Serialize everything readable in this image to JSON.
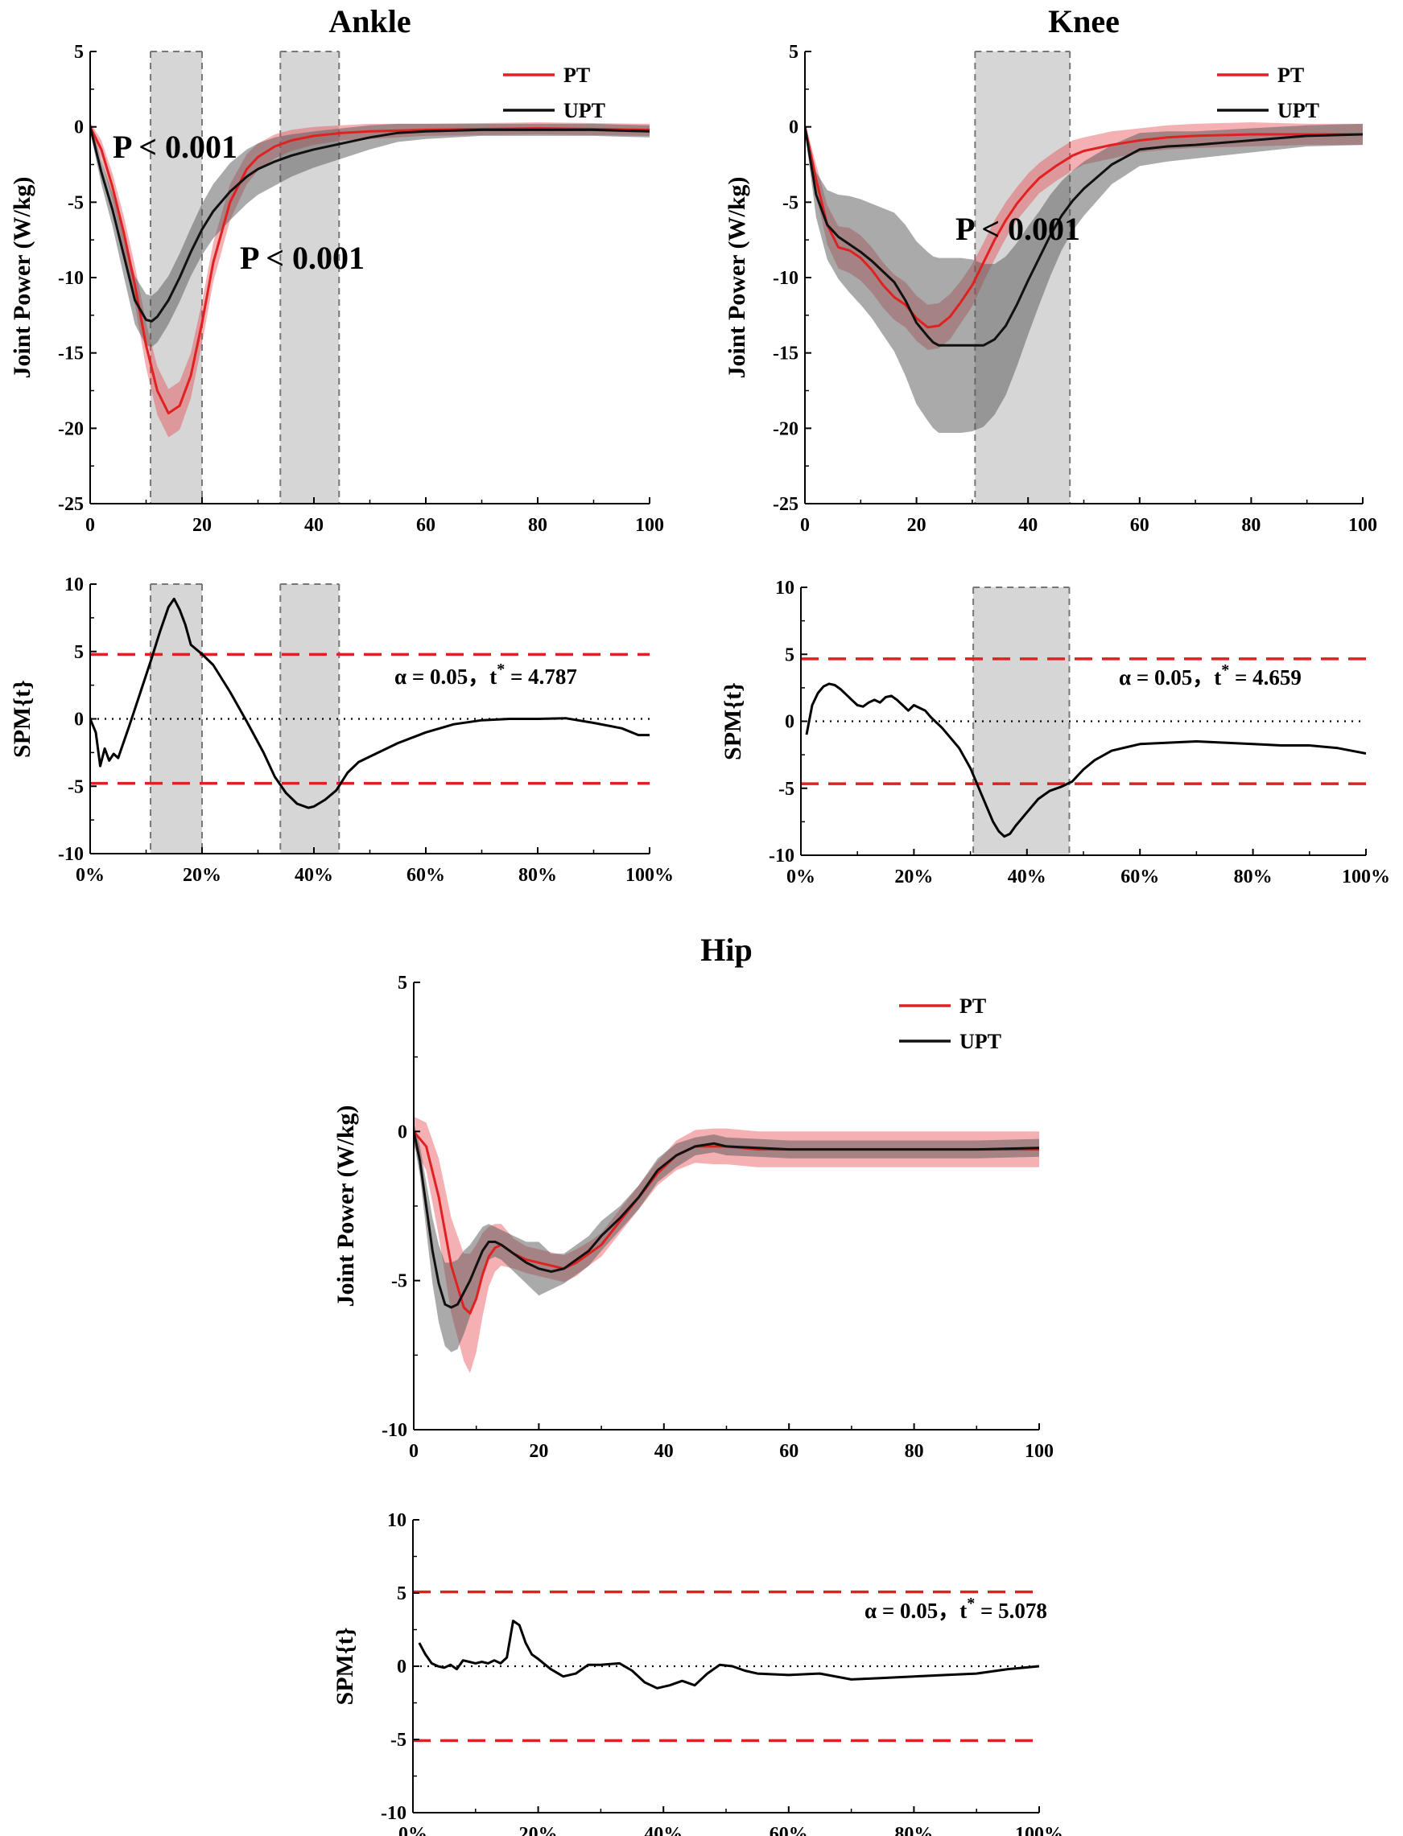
{
  "colors": {
    "pt": "#e02121",
    "upt": "#111111",
    "pt_band": "#e8424a",
    "upt_band": "#555555",
    "region": "#d6d6d6",
    "threshold": "#e02121"
  },
  "legend": {
    "pt": "PT",
    "upt": "UPT"
  },
  "chart_data": [
    {
      "id": "ankle_power",
      "type": "line",
      "title": "Ankle",
      "xlabel": "",
      "ylabel": "Joint Power (W/kg)",
      "xlim": [
        0,
        100
      ],
      "ylim": [
        -25,
        5
      ],
      "xticks": [
        "0",
        "20",
        "40",
        "60",
        "80",
        "100"
      ],
      "yticks": [
        "-25",
        "-20",
        "-15",
        "-10",
        "-5",
        "0",
        "5"
      ],
      "regions": [
        [
          10.8,
          20
        ],
        [
          34,
          44.5
        ]
      ],
      "annotations": [
        "P < 0.001",
        "P < 0.001"
      ],
      "series": [
        {
          "name": "PT",
          "x": [
            0,
            2,
            4,
            6,
            8,
            10,
            12,
            14,
            16,
            18,
            20,
            22,
            25,
            28,
            30,
            33,
            36,
            40,
            45,
            50,
            60,
            70,
            80,
            90,
            100
          ],
          "y": [
            0,
            -1.5,
            -4,
            -7,
            -10.5,
            -14.5,
            -17.5,
            -19,
            -18.5,
            -16.5,
            -13,
            -9,
            -5,
            -2.8,
            -2,
            -1.3,
            -0.9,
            -0.6,
            -0.4,
            -0.3,
            -0.2,
            -0.15,
            -0.1,
            -0.15,
            -0.2
          ],
          "sd": [
            0.3,
            0.6,
            0.9,
            1.1,
            1.3,
            1.5,
            1.6,
            1.6,
            1.6,
            1.5,
            1.4,
            1.3,
            1.2,
            1,
            0.9,
            0.8,
            0.7,
            0.6,
            0.5,
            0.5,
            0.4,
            0.4,
            0.4,
            0.4,
            0.4
          ]
        },
        {
          "name": "UPT",
          "x": [
            0,
            2,
            4,
            6,
            8,
            10,
            11,
            12,
            14,
            16,
            18,
            20,
            22,
            25,
            28,
            30,
            33,
            36,
            40,
            45,
            50,
            55,
            60,
            70,
            80,
            90,
            100
          ],
          "y": [
            0,
            -3,
            -5.5,
            -8.5,
            -11.5,
            -12.8,
            -12.9,
            -12.6,
            -11.5,
            -10,
            -8.3,
            -6.8,
            -5.6,
            -4.3,
            -3.3,
            -2.8,
            -2.3,
            -1.9,
            -1.5,
            -1.1,
            -0.7,
            -0.4,
            -0.3,
            -0.2,
            -0.2,
            -0.2,
            -0.3
          ],
          "sd": [
            0.3,
            0.8,
            1.1,
            1.4,
            1.6,
            1.7,
            1.7,
            1.7,
            1.6,
            1.6,
            1.6,
            1.7,
            1.8,
            1.9,
            1.8,
            1.7,
            1.6,
            1.4,
            1.2,
            1,
            0.8,
            0.6,
            0.5,
            0.4,
            0.4,
            0.4,
            0.4
          ]
        }
      ]
    },
    {
      "id": "ankle_spm",
      "type": "line",
      "title": "",
      "xlabel": "",
      "ylabel": "SPM{t}",
      "xlim": [
        0,
        100
      ],
      "ylim": [
        -10,
        10
      ],
      "xticks": [
        "0%",
        "20%",
        "40%",
        "60%",
        "80%",
        "100%"
      ],
      "yticks": [
        "-10",
        "-5",
        "0",
        "5",
        "10"
      ],
      "regions": [
        [
          10.8,
          20
        ],
        [
          34,
          44.5
        ]
      ],
      "threshold": 4.787,
      "threshold_label": {
        "prefix": "α = 0.05，t",
        "sup": "*",
        "suffix": " = 4.787"
      },
      "series": [
        {
          "name": "SPM{t}",
          "x": [
            0,
            1,
            1.8,
            2.6,
            3.4,
            4.2,
            5,
            7,
            9,
            11,
            12.5,
            14,
            15,
            16,
            17,
            18,
            20,
            22,
            25,
            28,
            31,
            33,
            35,
            37,
            39,
            40,
            42,
            44,
            46,
            48,
            50,
            55,
            60,
            65,
            70,
            75,
            80,
            85,
            90,
            95,
            98,
            100
          ],
          "y": [
            0,
            -1,
            -3.5,
            -2.2,
            -3.1,
            -2.6,
            -2.9,
            -0.5,
            2,
            4.5,
            6.5,
            8.3,
            8.9,
            8.1,
            7,
            5.5,
            4.8,
            4,
            2,
            -0.2,
            -2.5,
            -4.3,
            -5.5,
            -6.3,
            -6.6,
            -6.5,
            -6,
            -5.3,
            -4,
            -3.2,
            -2.8,
            -1.8,
            -1,
            -0.4,
            -0.1,
            0,
            0,
            0.05,
            -0.3,
            -0.7,
            -1.2,
            -1.2
          ]
        }
      ]
    },
    {
      "id": "knee_power",
      "type": "line",
      "title": "Knee",
      "xlabel": "",
      "ylabel": "Joint Power (W/kg)",
      "xlim": [
        0,
        100
      ],
      "ylim": [
        -25,
        5
      ],
      "xticks": [
        "0",
        "20",
        "40",
        "60",
        "80",
        "100"
      ],
      "yticks": [
        "-25",
        "-20",
        "-15",
        "-10",
        "-5",
        "0",
        "5"
      ],
      "regions": [
        [
          30.5,
          47.5
        ]
      ],
      "annotations": [
        "P < 0.001"
      ],
      "series": [
        {
          "name": "PT",
          "x": [
            0,
            2,
            4,
            6,
            8,
            10,
            12,
            14,
            16,
            18,
            20,
            22,
            24,
            26,
            28,
            30,
            32,
            34,
            36,
            38,
            40,
            42,
            45,
            48,
            50,
            55,
            60,
            65,
            70,
            80,
            90,
            100
          ],
          "y": [
            0,
            -3.5,
            -6.5,
            -8,
            -8.2,
            -8.7,
            -9.5,
            -10.5,
            -11.3,
            -11.8,
            -12.7,
            -13.3,
            -13.2,
            -12.6,
            -11.6,
            -10.5,
            -9,
            -7.5,
            -6.2,
            -5.1,
            -4.2,
            -3.4,
            -2.6,
            -1.9,
            -1.6,
            -1.2,
            -0.9,
            -0.7,
            -0.6,
            -0.5,
            -0.5,
            -0.5
          ],
          "sd": [
            0.3,
            1,
            1.3,
            1.4,
            1.5,
            1.5,
            1.5,
            1.5,
            1.5,
            1.5,
            1.5,
            1.5,
            1.5,
            1.5,
            1.4,
            1.4,
            1.3,
            1.3,
            1.2,
            1.1,
            1.1,
            1,
            1,
            1,
            0.9,
            0.9,
            0.8,
            0.8,
            0.8,
            0.8,
            0.7,
            0.7
          ]
        },
        {
          "name": "UPT",
          "x": [
            0,
            2,
            4,
            6,
            8,
            10,
            12,
            14,
            16,
            18,
            20,
            22,
            23,
            24,
            26,
            28,
            30,
            32,
            34,
            36,
            38,
            40,
            42,
            44,
            46,
            48,
            50,
            55,
            60,
            65,
            70,
            80,
            90,
            100
          ],
          "y": [
            0,
            -4.5,
            -6.5,
            -7.3,
            -7.8,
            -8.3,
            -8.9,
            -9.6,
            -10.3,
            -11.5,
            -13,
            -13.9,
            -14.3,
            -14.5,
            -14.5,
            -14.5,
            -14.5,
            -14.5,
            -14.1,
            -13.2,
            -11.8,
            -10.2,
            -8.7,
            -7.2,
            -5.9,
            -4.9,
            -4.1,
            -2.5,
            -1.5,
            -1.3,
            -1.2,
            -0.9,
            -0.6,
            -0.5
          ],
          "sd": [
            0.3,
            1.5,
            2.3,
            2.8,
            3.2,
            3.5,
            3.8,
            4.2,
            4.6,
            5,
            5.4,
            5.6,
            5.7,
            5.8,
            5.8,
            5.8,
            5.7,
            5.4,
            5,
            4.6,
            4.1,
            3.6,
            3.1,
            2.7,
            2.3,
            2,
            1.8,
            1.3,
            1.1,
            1,
            0.9,
            0.8,
            0.7,
            0.7
          ]
        }
      ]
    },
    {
      "id": "knee_spm",
      "type": "line",
      "title": "",
      "xlabel": "",
      "ylabel": "SPM{t}",
      "xlim": [
        0,
        100
      ],
      "ylim": [
        -10,
        10
      ],
      "xticks": [
        "0%",
        "20%",
        "40%",
        "60%",
        "80%",
        "100%"
      ],
      "yticks": [
        "-10",
        "-5",
        "0",
        "5",
        "10"
      ],
      "regions": [
        [
          30.5,
          47.5
        ]
      ],
      "threshold": 4.659,
      "threshold_label": {
        "prefix": "α = 0.05，t",
        "sup": "*",
        "suffix": " = 4.659"
      },
      "series": [
        {
          "name": "SPM{t}",
          "x": [
            1,
            2,
            3,
            4,
            5,
            6,
            7,
            8,
            9,
            10,
            11,
            12,
            13,
            14,
            15,
            16,
            17,
            18,
            19,
            20,
            21,
            22,
            23,
            25,
            28,
            30,
            32,
            34,
            35,
            36,
            37,
            38,
            40,
            42,
            44,
            46,
            48,
            50,
            52,
            55,
            60,
            65,
            70,
            75,
            80,
            85,
            90,
            95,
            100
          ],
          "y": [
            -1,
            1.2,
            2.1,
            2.6,
            2.8,
            2.7,
            2.4,
            2,
            1.6,
            1.2,
            1.1,
            1.4,
            1.6,
            1.4,
            1.8,
            1.9,
            1.6,
            1.2,
            0.8,
            1.2,
            1,
            0.8,
            0.3,
            -0.5,
            -2,
            -3.5,
            -5.5,
            -7.5,
            -8.2,
            -8.6,
            -8.4,
            -7.8,
            -6.8,
            -5.8,
            -5.2,
            -4.9,
            -4.5,
            -3.6,
            -2.9,
            -2.2,
            -1.7,
            -1.6,
            -1.5,
            -1.6,
            -1.7,
            -1.8,
            -1.8,
            -2,
            -2.4
          ]
        }
      ]
    },
    {
      "id": "hip_power",
      "type": "line",
      "title": "Hip",
      "xlabel": "",
      "ylabel": "Joint Power (W/kg)",
      "xlim": [
        0,
        100
      ],
      "ylim": [
        -10,
        5
      ],
      "xticks": [
        "0",
        "20",
        "40",
        "60",
        "80",
        "100"
      ],
      "yticks": [
        "-10",
        "-5",
        "0",
        "5"
      ],
      "regions": [],
      "series": [
        {
          "name": "PT",
          "x": [
            0,
            2,
            4,
            6,
            8,
            9,
            10,
            11,
            12,
            13,
            14,
            16,
            18,
            20,
            22,
            24,
            26,
            28,
            30,
            33,
            36,
            39,
            42,
            45,
            48,
            50,
            55,
            60,
            70,
            80,
            90,
            100
          ],
          "y": [
            0,
            -0.5,
            -2.2,
            -4.5,
            -5.9,
            -6.1,
            -5.6,
            -4.8,
            -4.2,
            -3.9,
            -3.8,
            -4.1,
            -4.3,
            -4.4,
            -4.5,
            -4.6,
            -4.4,
            -4.1,
            -3.8,
            -3,
            -2.2,
            -1.4,
            -0.8,
            -0.5,
            -0.5,
            -0.5,
            -0.6,
            -0.6,
            -0.6,
            -0.6,
            -0.6,
            -0.6
          ],
          "sd": [
            0.5,
            0.8,
            1.3,
            1.6,
            1.8,
            2,
            1.8,
            1.4,
            1,
            0.8,
            0.7,
            0.5,
            0.45,
            0.45,
            0.45,
            0.45,
            0.45,
            0.4,
            0.4,
            0.4,
            0.4,
            0.4,
            0.5,
            0.55,
            0.6,
            0.6,
            0.6,
            0.6,
            0.6,
            0.6,
            0.6,
            0.6
          ]
        },
        {
          "name": "UPT",
          "x": [
            0,
            1,
            2,
            3,
            4,
            5,
            6,
            7,
            8,
            9,
            10,
            11,
            12,
            13,
            14,
            16,
            18,
            20,
            22,
            24,
            26,
            28,
            30,
            33,
            36,
            39,
            42,
            45,
            48,
            50,
            55,
            60,
            70,
            80,
            90,
            100
          ],
          "y": [
            0,
            -1,
            -2.5,
            -4,
            -5.1,
            -5.8,
            -5.9,
            -5.8,
            -5.4,
            -5,
            -4.5,
            -4,
            -3.7,
            -3.7,
            -3.8,
            -4.1,
            -4.4,
            -4.6,
            -4.7,
            -4.6,
            -4.3,
            -4,
            -3.5,
            -2.9,
            -2.2,
            -1.3,
            -0.8,
            -0.5,
            -0.4,
            -0.5,
            -0.55,
            -0.6,
            -0.6,
            -0.6,
            -0.6,
            -0.55
          ],
          "sd": [
            0.3,
            0.5,
            0.8,
            1.1,
            1.3,
            1.4,
            1.5,
            1.5,
            1.4,
            1.2,
            1,
            0.8,
            0.6,
            0.5,
            0.5,
            0.6,
            0.7,
            0.9,
            0.6,
            0.5,
            0.5,
            0.5,
            0.5,
            0.4,
            0.4,
            0.4,
            0.4,
            0.3,
            0.3,
            0.3,
            0.3,
            0.3,
            0.3,
            0.3,
            0.3,
            0.3
          ]
        }
      ]
    },
    {
      "id": "hip_spm",
      "type": "line",
      "title": "",
      "xlabel": "",
      "ylabel": "SPM{t}",
      "xlim": [
        0,
        100
      ],
      "ylim": [
        -10,
        10
      ],
      "xticks": [
        "0%",
        "20%",
        "40%",
        "60%",
        "80%",
        "100%"
      ],
      "yticks": [
        "-10",
        "-5",
        "0",
        "5",
        "10"
      ],
      "regions": [],
      "threshold": 5.078,
      "threshold_label": {
        "prefix": "α = 0.05，t",
        "sup": "*",
        "suffix": " = 5.078"
      },
      "series": [
        {
          "name": "SPM{t}",
          "x": [
            1,
            2,
            3,
            4,
            5,
            6,
            7,
            8,
            9,
            10,
            11,
            12,
            13,
            14,
            15,
            16,
            17,
            18,
            19,
            20,
            22,
            24,
            26,
            28,
            30,
            33,
            35,
            37,
            39,
            41,
            43,
            45,
            47,
            49,
            51,
            53,
            55,
            60,
            65,
            70,
            75,
            80,
            85,
            90,
            95,
            100
          ],
          "y": [
            1.6,
            0.8,
            0.2,
            0,
            -0.1,
            0.1,
            -0.2,
            0.4,
            0.3,
            0.2,
            0.3,
            0.2,
            0.4,
            0.2,
            0.6,
            3.1,
            2.8,
            1.6,
            0.8,
            0.5,
            -0.2,
            -0.7,
            -0.5,
            0.1,
            0.1,
            0.2,
            -0.3,
            -1.1,
            -1.5,
            -1.3,
            -1,
            -1.3,
            -0.5,
            0.1,
            0,
            -0.3,
            -0.5,
            -0.6,
            -0.5,
            -0.9,
            -0.8,
            -0.7,
            -0.6,
            -0.5,
            -0.2,
            0
          ]
        }
      ]
    }
  ]
}
